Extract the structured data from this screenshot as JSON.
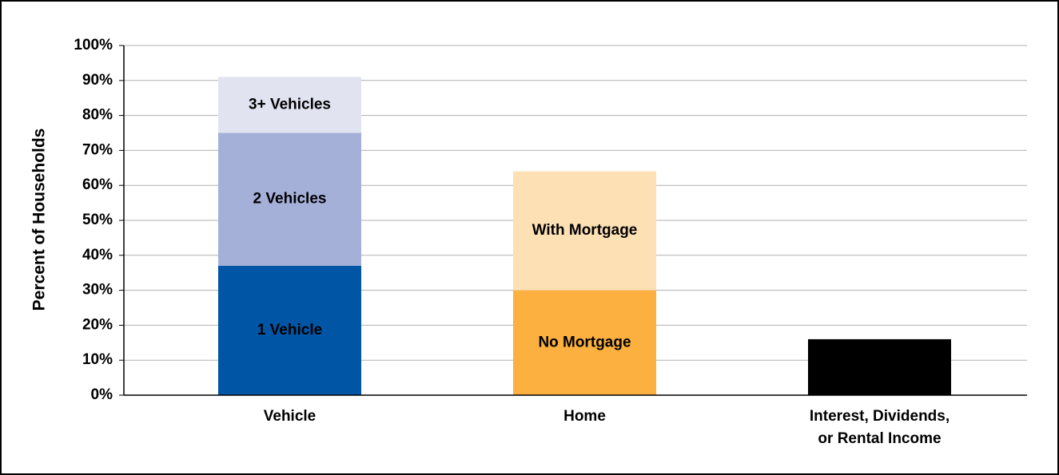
{
  "chart_data": {
    "type": "stacked_bar",
    "y_label": "Percent of Households",
    "categories": [
      [
        "Vehicle"
      ],
      [
        "Home"
      ],
      [
        "Interest, Dividends,",
        "or Rental Income"
      ]
    ],
    "series": [
      {
        "name": "1 Vehicle",
        "color": "#0055a5",
        "label_color": "#ffffff",
        "values": [
          37,
          null,
          null
        ]
      },
      {
        "name": "2 Vehicles",
        "color": "#a5b0d9",
        "label_color": "#000000",
        "values": [
          38,
          null,
          null
        ]
      },
      {
        "name": "3+ Vehicles",
        "color": "#e1e3f1",
        "label_color": "#000000",
        "values": [
          16,
          null,
          null
        ]
      },
      {
        "name": "No Mortgage",
        "color": "#fbb040",
        "label_color": "#000000",
        "values": [
          null,
          30,
          null
        ]
      },
      {
        "name": "With Mortgage",
        "color": "#fde0b4",
        "label_color": "#000000",
        "values": [
          null,
          34,
          null
        ]
      },
      {
        "color": "#000000",
        "values": [
          null,
          null,
          16
        ]
      }
    ],
    "ylim": [
      0,
      100
    ],
    "yticks": [
      {
        "value": 0,
        "label": "0%"
      },
      {
        "value": 10,
        "label": "10%"
      },
      {
        "value": 20,
        "label": "20%"
      },
      {
        "value": 30,
        "label": "30%"
      },
      {
        "value": 40,
        "label": "40%"
      },
      {
        "value": 50,
        "label": "50%"
      },
      {
        "value": 60,
        "label": "60%"
      },
      {
        "value": 70,
        "label": "70%"
      },
      {
        "value": 80,
        "label": "80%"
      },
      {
        "value": 90,
        "label": "90%"
      },
      {
        "value": 100,
        "label": "100%"
      }
    ],
    "grid": true
  }
}
